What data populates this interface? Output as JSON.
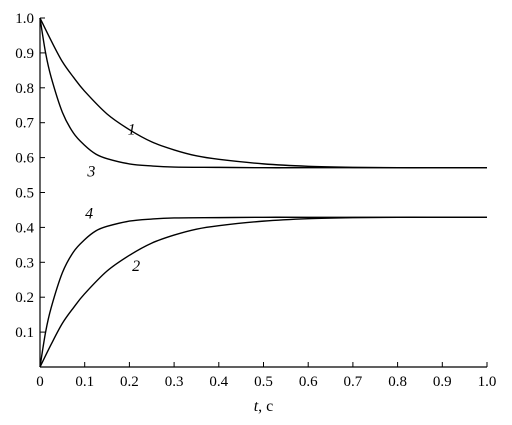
{
  "chart_data": {
    "type": "line",
    "title": "",
    "xlabel_var": "t",
    "xlabel_unit": ", c",
    "ylabel": "",
    "xlim": [
      0,
      1.0
    ],
    "ylim": [
      0,
      1.0
    ],
    "x_ticks": [
      "0",
      "0.1",
      "0.2",
      "0.3",
      "0.4",
      "0.5",
      "0.6",
      "0.7",
      "0.8",
      "0.9",
      "1.0"
    ],
    "y_ticks": [
      "0.1",
      "0.2",
      "0.3",
      "0.4",
      "0.5",
      "0.6",
      "0.7",
      "0.8",
      "0.9",
      "1.0"
    ],
    "x_tick_values": [
      0,
      0.1,
      0.2,
      0.3,
      0.4,
      0.5,
      0.6,
      0.7,
      0.8,
      0.9,
      1.0
    ],
    "y_tick_values": [
      0.1,
      0.2,
      0.3,
      0.4,
      0.5,
      0.6,
      0.7,
      0.8,
      0.9,
      1.0
    ],
    "grid": false,
    "series": [
      {
        "name": "1",
        "x": [
          0,
          0.025,
          0.05,
          0.075,
          0.1,
          0.15,
          0.2,
          0.25,
          0.3,
          0.35,
          0.4,
          0.5,
          0.6,
          0.7,
          0.8,
          0.9,
          1.0
        ],
        "y": [
          1.0,
          0.935,
          0.875,
          0.83,
          0.79,
          0.725,
          0.68,
          0.645,
          0.622,
          0.605,
          0.595,
          0.582,
          0.575,
          0.572,
          0.571,
          0.571,
          0.571
        ]
      },
      {
        "name": "2",
        "x": [
          0,
          0.025,
          0.05,
          0.075,
          0.1,
          0.15,
          0.2,
          0.25,
          0.3,
          0.35,
          0.4,
          0.5,
          0.6,
          0.7,
          0.8,
          0.9,
          1.0
        ],
        "y": [
          0,
          0.065,
          0.125,
          0.17,
          0.21,
          0.275,
          0.32,
          0.355,
          0.378,
          0.395,
          0.405,
          0.418,
          0.425,
          0.428,
          0.429,
          0.429,
          0.429
        ]
      },
      {
        "name": "3",
        "x": [
          0,
          0.0125,
          0.025,
          0.05,
          0.075,
          0.1,
          0.125,
          0.15,
          0.2,
          0.25,
          0.3,
          0.4,
          0.5,
          0.6,
          0.8,
          1.0
        ],
        "y": [
          1.0,
          0.9,
          0.83,
          0.73,
          0.67,
          0.635,
          0.61,
          0.597,
          0.582,
          0.576,
          0.573,
          0.572,
          0.571,
          0.571,
          0.571,
          0.571
        ]
      },
      {
        "name": "4",
        "x": [
          0,
          0.0125,
          0.025,
          0.05,
          0.075,
          0.1,
          0.125,
          0.15,
          0.2,
          0.25,
          0.3,
          0.4,
          0.5,
          0.6,
          0.8,
          1.0
        ],
        "y": [
          0,
          0.1,
          0.17,
          0.27,
          0.33,
          0.365,
          0.39,
          0.403,
          0.418,
          0.424,
          0.427,
          0.428,
          0.429,
          0.429,
          0.429,
          0.429
        ]
      }
    ],
    "curve_labels": [
      {
        "text": "1",
        "x": 0.205,
        "y": 0.68
      },
      {
        "text": "2",
        "x": 0.215,
        "y": 0.29
      },
      {
        "text": "3",
        "x": 0.115,
        "y": 0.56
      },
      {
        "text": "4",
        "x": 0.11,
        "y": 0.44
      }
    ]
  }
}
